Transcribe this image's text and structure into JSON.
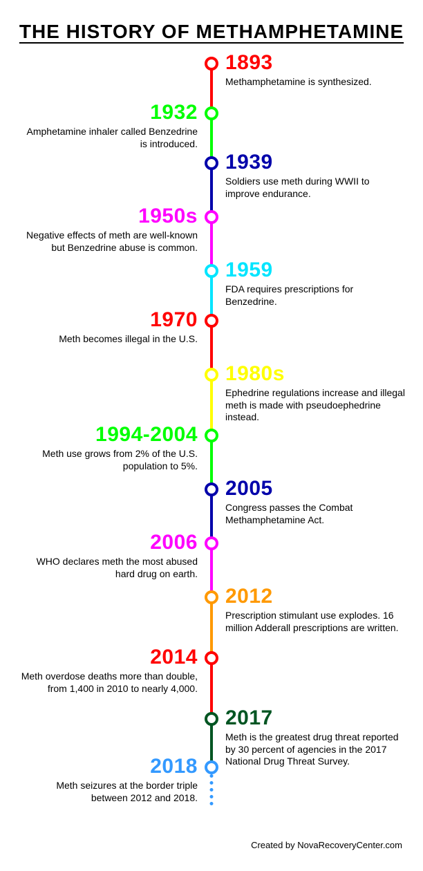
{
  "title": "THE HISTORY OF METHAMPHETAMINE",
  "title_fontsize": 28,
  "credit": "Created by NovaRecoveryCenter.com",
  "node_diameter": 20,
  "node_border_width": 4,
  "connector_width": 4,
  "year_fontsize": 30,
  "desc_fontsize": 14,
  "events": [
    {
      "year": "1893",
      "side": "right",
      "color": "#ff0000",
      "desc": "Methamphetamine is synthesized.",
      "gap": 72
    },
    {
      "year": "1932",
      "side": "left",
      "color": "#00ff00",
      "desc": "Amphetamine inhaler called Benzedrine is introduced.",
      "gap": 72
    },
    {
      "year": "1939",
      "side": "right",
      "color": "#0000aa",
      "desc": "Soldiers use meth during WWII to improve endurance.",
      "gap": 78
    },
    {
      "year": "1950s",
      "side": "left",
      "color": "#ff00ff",
      "desc": "Negative effects of meth are well-known but Benzedrine abuse is common.",
      "gap": 78
    },
    {
      "year": "1959",
      "side": "right",
      "color": "#00e5ff",
      "desc": "FDA requires prescriptions for Benzedrine.",
      "gap": 72
    },
    {
      "year": "1970",
      "side": "left",
      "color": "#ff0000",
      "desc": "Meth becomes illegal in the U.S.",
      "gap": 78
    },
    {
      "year": "1980s",
      "side": "right",
      "color": "#ffff00",
      "desc": "Ephedrine regulations increase and  illegal meth is made with pseudoephedrine instead.",
      "gap": 88
    },
    {
      "year": "1994-2004",
      "side": "left",
      "color": "#00ff00",
      "desc": "Meth use grows from 2% of the U.S. population to 5%.",
      "gap": 78
    },
    {
      "year": "2005",
      "side": "right",
      "color": "#0000aa",
      "desc": "Congress passes the Combat Methamphetamine Act.",
      "gap": 78
    },
    {
      "year": "2006",
      "side": "left",
      "color": "#ff00ff",
      "desc": "WHO declares meth the most abused hard drug on earth.",
      "gap": 78
    },
    {
      "year": "2012",
      "side": "right",
      "color": "#ff9900",
      "desc": "Prescription stimulant use explodes. 16 million Adderall prescriptions are written.",
      "gap": 88
    },
    {
      "year": "2014",
      "side": "left",
      "color": "#ff0000",
      "desc": "Meth overdose deaths more than double, from 1,400 in 2010 to nearly 4,000.",
      "gap": 88
    },
    {
      "year": "2017",
      "side": "right",
      "color": "#005522",
      "desc": "Meth is the greatest drug threat reported by 30 percent of agencies in the 2017 National Drug Threat Survey.",
      "gap": 70
    },
    {
      "year": "2018",
      "side": "left",
      "color": "#3399ff",
      "desc": "Meth seizures at the border triple between 2012 and 2018.",
      "gap": 0
    }
  ],
  "dotted_tail": {
    "color": "#3399ff",
    "length": 45,
    "border_width": 5
  }
}
